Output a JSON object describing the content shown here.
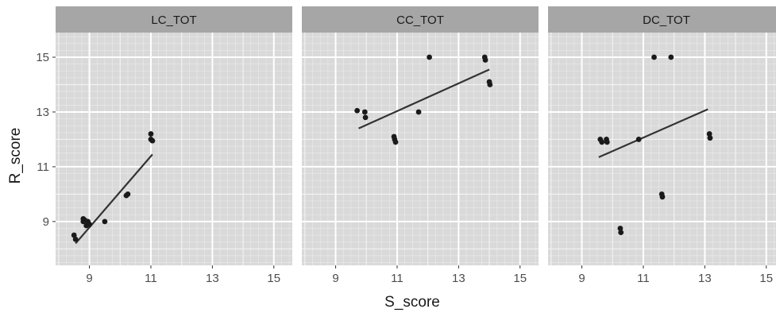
{
  "chart_data": {
    "type": "scatter",
    "xlabel": "S_score",
    "ylabel": "R_score",
    "xlim": [
      7.9,
      15.6
    ],
    "ylim": [
      7.4,
      15.9
    ],
    "x_ticks": [
      9,
      11,
      13,
      15
    ],
    "y_ticks": [
      9,
      11,
      13,
      15
    ],
    "grid": true,
    "trend_line": "linear fit",
    "colors": {
      "panel_bg": "#d9d9d9",
      "strip_bg": "#a6a6a6",
      "grid": "#f2f2f2",
      "point": "#1a1a1a",
      "line": "#333333"
    },
    "panels": [
      {
        "name": "LC_TOT",
        "points": [
          {
            "x": 8.5,
            "y": 8.5
          },
          {
            "x": 8.55,
            "y": 8.35
          },
          {
            "x": 8.8,
            "y": 9.0
          },
          {
            "x": 8.8,
            "y": 9.1
          },
          {
            "x": 8.85,
            "y": 9.05
          },
          {
            "x": 8.9,
            "y": 8.85
          },
          {
            "x": 8.95,
            "y": 9.0
          },
          {
            "x": 9.0,
            "y": 8.9
          },
          {
            "x": 9.5,
            "y": 9.0
          },
          {
            "x": 10.2,
            "y": 9.95
          },
          {
            "x": 10.25,
            "y": 10.0
          },
          {
            "x": 11.0,
            "y": 12.2
          },
          {
            "x": 11.0,
            "y": 12.0
          },
          {
            "x": 11.05,
            "y": 11.95
          }
        ],
        "line": [
          {
            "x": 8.55,
            "y": 8.2
          },
          {
            "x": 11.05,
            "y": 11.45
          }
        ]
      },
      {
        "name": "CC_TOT",
        "points": [
          {
            "x": 9.7,
            "y": 13.05
          },
          {
            "x": 9.95,
            "y": 13.0
          },
          {
            "x": 9.97,
            "y": 12.8
          },
          {
            "x": 10.9,
            "y": 12.1
          },
          {
            "x": 10.92,
            "y": 12.0
          },
          {
            "x": 10.95,
            "y": 11.9
          },
          {
            "x": 11.7,
            "y": 13.0
          },
          {
            "x": 12.05,
            "y": 15.0
          },
          {
            "x": 13.85,
            "y": 15.0
          },
          {
            "x": 13.87,
            "y": 14.9
          },
          {
            "x": 14.0,
            "y": 14.1
          },
          {
            "x": 14.02,
            "y": 14.0
          }
        ],
        "line": [
          {
            "x": 9.75,
            "y": 12.4
          },
          {
            "x": 14.0,
            "y": 14.55
          }
        ]
      },
      {
        "name": "DC_TOT",
        "points": [
          {
            "x": 9.6,
            "y": 12.0
          },
          {
            "x": 9.65,
            "y": 11.9
          },
          {
            "x": 9.8,
            "y": 12.0
          },
          {
            "x": 9.82,
            "y": 11.9
          },
          {
            "x": 10.25,
            "y": 8.75
          },
          {
            "x": 10.27,
            "y": 8.6
          },
          {
            "x": 10.85,
            "y": 12.0
          },
          {
            "x": 11.35,
            "y": 15.0
          },
          {
            "x": 11.6,
            "y": 10.0
          },
          {
            "x": 11.62,
            "y": 9.9
          },
          {
            "x": 11.9,
            "y": 15.0
          },
          {
            "x": 13.15,
            "y": 12.2
          },
          {
            "x": 13.17,
            "y": 12.05
          }
        ],
        "line": [
          {
            "x": 9.55,
            "y": 11.35
          },
          {
            "x": 13.1,
            "y": 13.1
          }
        ]
      }
    ]
  }
}
